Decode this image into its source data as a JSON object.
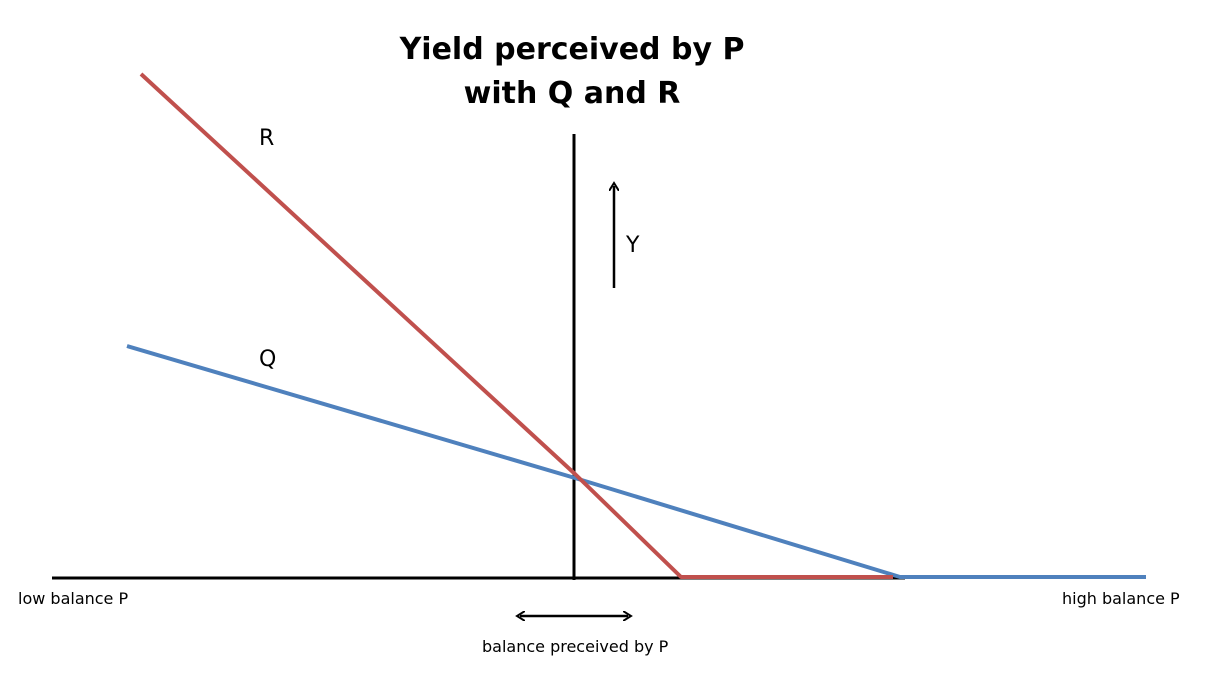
{
  "title": {
    "line1": "Yield perceived by P",
    "line2": "with Q and R"
  },
  "labels": {
    "series_r": "R",
    "series_q": "Q",
    "y_arrow": "Y",
    "low_end": "low balance P",
    "high_end": "high balance P",
    "range_arrow": "balance preceived by P"
  },
  "colors": {
    "r_line": "#c0504d",
    "q_line": "#4f81bd",
    "axis": "#000000"
  },
  "icons": {
    "y_arrow": "up-arrow-icon",
    "range_arrow": "double-headed-horizontal-arrow-icon"
  }
}
